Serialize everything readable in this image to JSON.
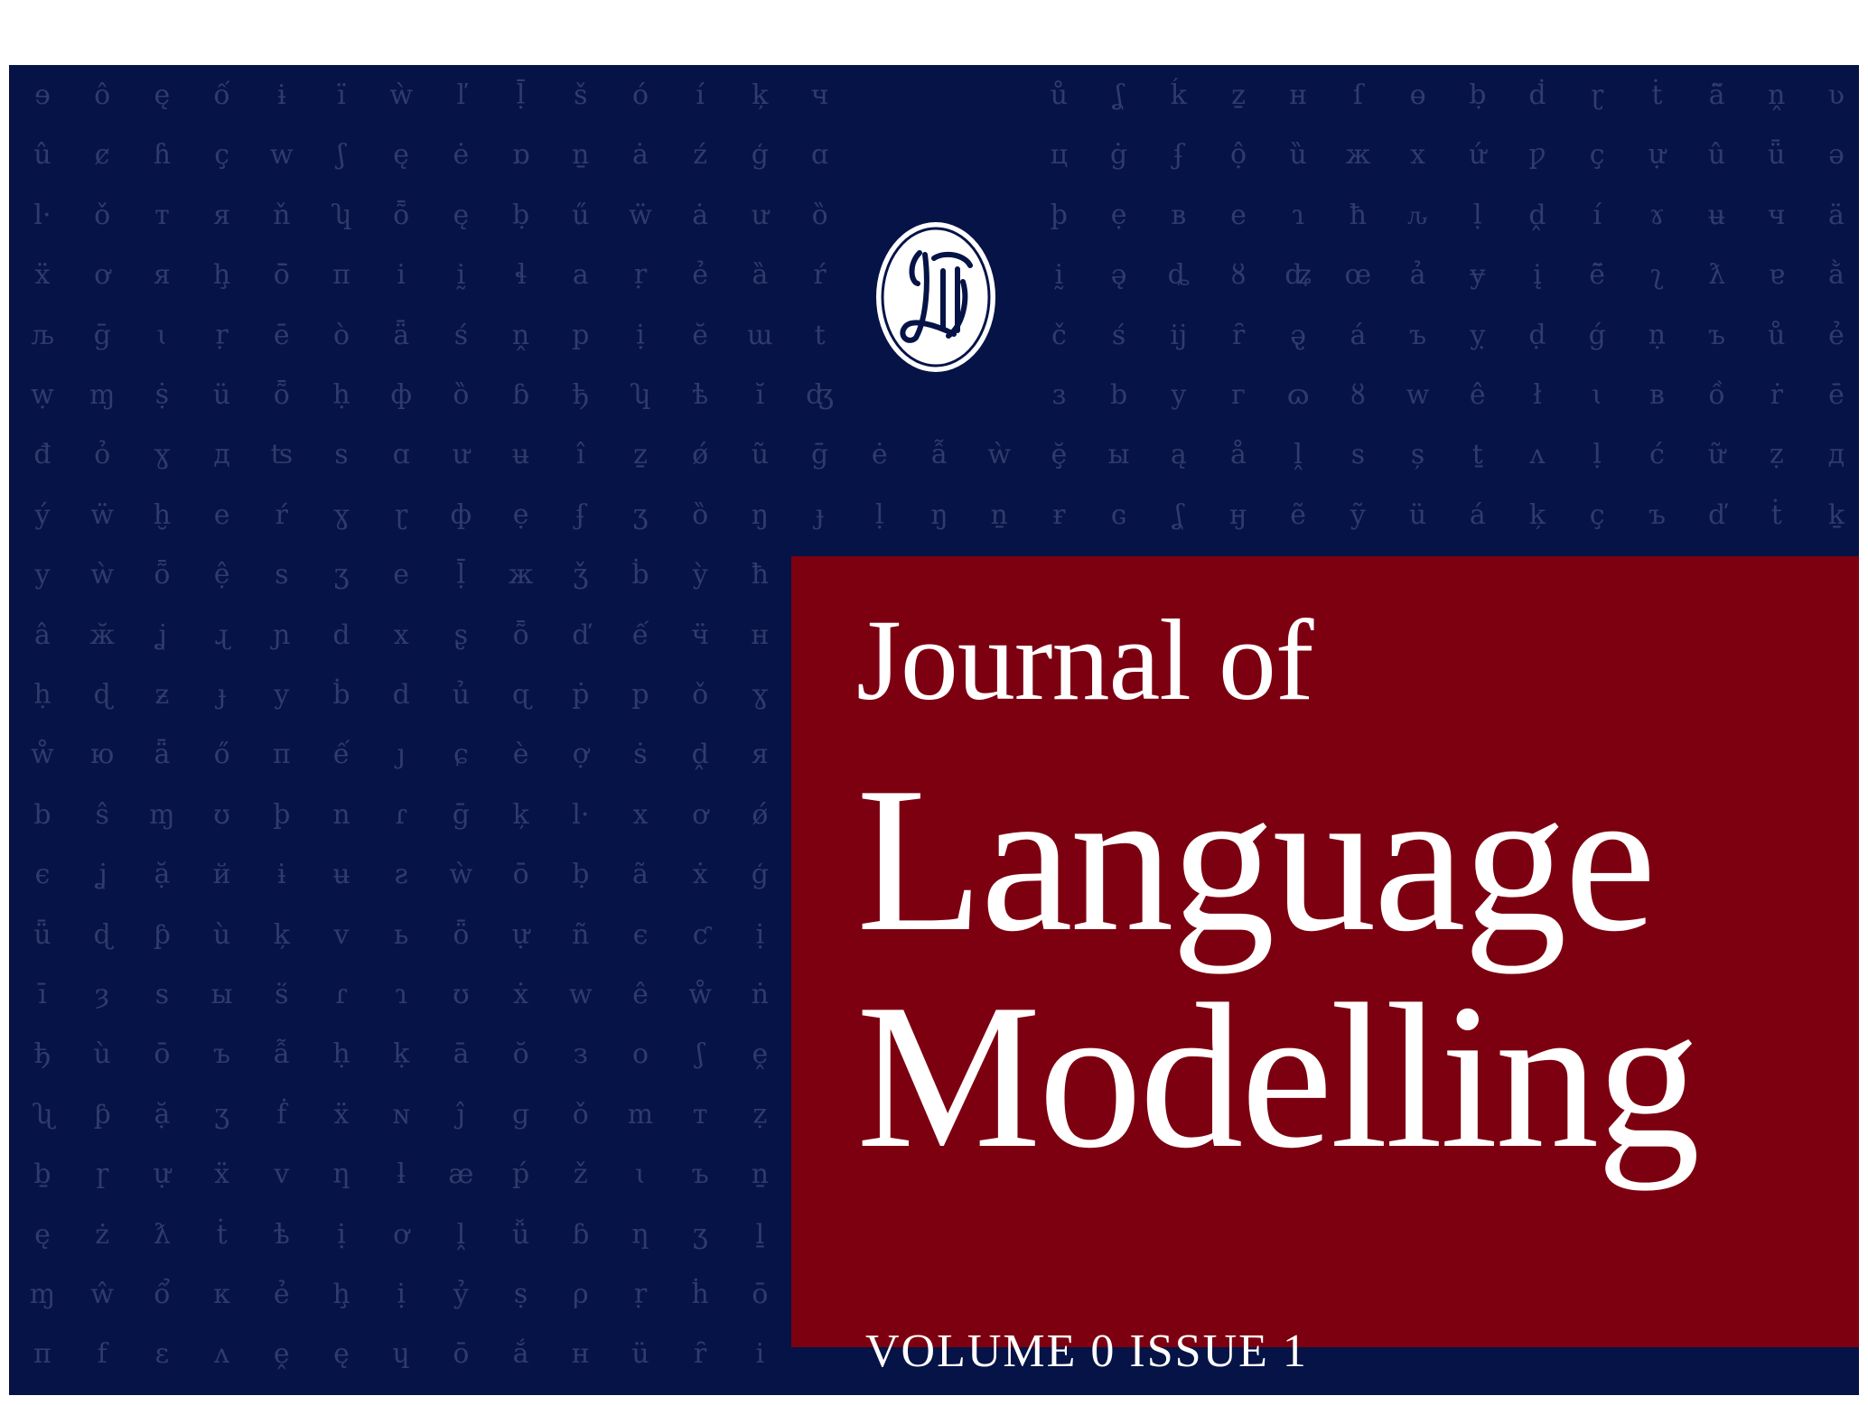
{
  "journal": {
    "title_line1": "Journal of",
    "title_line2": "Language",
    "title_line3": "Modelling",
    "volume_issue": "VOLUME 0  ISSUE 1",
    "logo_icon": "jlm-monogram-seal-icon"
  },
  "colors": {
    "background_navy": "#061346",
    "title_box_red": "#7d0011",
    "glyph_pattern": "#2f3b6c",
    "text": "#ffffff"
  },
  "glyph_rows": [
    [
      "ɘ",
      "ô",
      "ę",
      "ố",
      "ɨ",
      "ï",
      "ẁ",
      "ľ",
      "ḹ",
      "š",
      "ó",
      "í",
      "ķ",
      "ч",
      "",
      "",
      "",
      "ů",
      "ʆ",
      "ḱ",
      "ẕ",
      "н",
      "ſ",
      "ɵ",
      "ḅ",
      "ḋ",
      "ɽ",
      "ṫ",
      "ã̃",
      "ṋ",
      "ʋ"
    ],
    [
      "û",
      "ȼ",
      "ɦ",
      "ç",
      "w",
      "ʃ",
      "ę",
      "ė",
      "ɒ",
      "ṉ",
      "ȧ",
      "ź",
      "ģ",
      "ɑ",
      "",
      "",
      "",
      "ц",
      "ġ",
      "ʄ",
      "ộ",
      "ȕ",
      "ж",
      "х",
      "ứ",
      "ƿ",
      "ç",
      "ự",
      "û",
      "ǖ",
      "ə"
    ],
    [
      "l·",
      "ǒ",
      "т",
      "я",
      "ň",
      "ʮ",
      "ȭ",
      "ę",
      "ḅ",
      "ű",
      "ẅ",
      "ȧ",
      "ư",
      "ȍ",
      "",
      "",
      "",
      "þ",
      "ẹ",
      "в",
      "e",
      "ɿ",
      "ħ",
      "ԉ",
      "ḷ",
      "ḓ",
      "í",
      "ɤ",
      "ʉ",
      "ч",
      "ä"
    ],
    [
      "ẍ",
      "ơ",
      "я",
      "ḩ",
      "ō̄",
      "π",
      "i",
      "ḭ",
      "ɬ",
      "a",
      "ṛ",
      "ẻ",
      "ȁ",
      "ŕ",
      "",
      "",
      "",
      "ḭ",
      "ə̨",
      "ȡ",
      "ȣ",
      "ʥ",
      "œ",
      "ả",
      "ɏ",
      "į",
      "ẽ̄",
      "ʅ",
      "ƛ",
      "ɐ",
      "ằ"
    ],
    [
      "љ",
      "ḡ",
      "ɩ",
      "ṛ",
      "ē",
      "ò",
      "ǟ",
      "ś",
      "ṋ",
      "p",
      "ị",
      "ĕ",
      "ɯ",
      "t",
      "",
      "",
      "",
      "č",
      "ś",
      "ij",
      "ȓ",
      "ə̢",
      "á",
      "ъ",
      "ỵ",
      "ḍ",
      "ǵ",
      "ṇ",
      "ъ",
      "ů",
      "ẻ"
    ],
    [
      "ẉ",
      "ɱ",
      "ṩ",
      "ü",
      "ȭ",
      "ḥ",
      "ф",
      "ȍ",
      "ɓ",
      "ђ",
      "ʮ",
      "ѣ",
      "ĭ",
      "ʤ",
      "",
      "",
      "",
      "ɜ",
      "b",
      "y",
      "г",
      "ɷ",
      "ȣ",
      "w",
      "ê",
      "ł",
      "ɩ",
      "в",
      "ồ",
      "ṙ",
      "ē"
    ],
    [
      "đ",
      "ỏ",
      "ɣ",
      "д",
      "ʦ",
      "s",
      "ɑ",
      "ư",
      "ʉ",
      "î",
      "ẕ",
      "ǿ",
      "ũ",
      "ḡ",
      "ė",
      "ẫ",
      "ẁ",
      "ḝ",
      "ы",
      "ą",
      "å",
      "ḽ",
      "s",
      "ș",
      "ṯ",
      "ʌ",
      "ḷ",
      "ć",
      "ữ",
      "ẓ",
      "д"
    ],
    [
      "ý",
      "ẅ",
      "ḫ",
      "e",
      "ŕ",
      "ɣ",
      "ɽ",
      "ф",
      "ẹ",
      "ʄ",
      "ʒ",
      "ȍ",
      "ŋ",
      "ɟ",
      "ḷ",
      "ŋ",
      "ṉ",
      "ɍ",
      "ɢ",
      "ʆ",
      "ӈ",
      "ẽ",
      "ỹ",
      "ü",
      "á",
      "ķ",
      "ç",
      "ъ",
      "ď",
      "ṫ",
      "ḵ"
    ],
    [
      "y",
      "ẁ",
      "ȭ",
      "ệ",
      "s",
      "ʒ",
      "e",
      "ḹ",
      "ж",
      "ǯ",
      "ḃ",
      "ỳ",
      "ħ",
      "",
      "",
      "",
      "",
      "",
      "",
      "",
      "",
      "",
      "",
      "",
      "",
      "",
      "",
      "",
      "",
      "",
      ""
    ],
    [
      "â",
      "ӂ",
      "ʝ",
      "ɻ",
      "ɲ",
      "d",
      "x",
      "ʂ",
      "ȭ",
      "ď",
      "ế",
      "ӵ",
      "н",
      "",
      "",
      "",
      "",
      "",
      "",
      "",
      "",
      "",
      "",
      "",
      "",
      "",
      "",
      "",
      "",
      "",
      ""
    ],
    [
      "ḥ",
      "ɖ",
      "ƶ",
      "ɟ",
      "y",
      "ḃ",
      "d",
      "ủ",
      "ɋ",
      "ṗ",
      "p",
      "ǒ",
      "ɣ",
      "",
      "",
      "",
      "",
      "",
      "",
      "",
      "",
      "",
      "",
      "",
      "",
      "",
      "",
      "",
      "",
      "",
      ""
    ],
    [
      "ẘ",
      "ю",
      "ǟ",
      "ő",
      "π",
      "ế",
      "ȷ",
      "ɕ",
      "è",
      "ợ",
      "ṡ",
      "ḓ",
      "я",
      "",
      "",
      "",
      "",
      "",
      "",
      "",
      "",
      "",
      "",
      "",
      "",
      "",
      "",
      "",
      "",
      "",
      ""
    ],
    [
      "b",
      "ŝ",
      "ɱ",
      "ʊ",
      "þ",
      "n",
      "ɾ",
      "ḡ",
      "ķ",
      "l·",
      "x",
      "ơ",
      "ǿ",
      "",
      "",
      "",
      "",
      "",
      "",
      "",
      "",
      "",
      "",
      "",
      "",
      "",
      "",
      "",
      "",
      "",
      ""
    ],
    [
      "є",
      "ʝ",
      "ặ",
      "й",
      "ɨ",
      "ʉ",
      "ƨ",
      "ẁ",
      "ō",
      "ḅ",
      "ã",
      "ẋ",
      "ģ",
      "",
      "",
      "",
      "",
      "",
      "",
      "",
      "",
      "",
      "",
      "",
      "",
      "",
      "",
      "",
      "",
      "",
      ""
    ],
    [
      "ǖ",
      "ɖ",
      "ƥ",
      "ù",
      "ķ",
      "v",
      "ь",
      "ȫ",
      "ự",
      "ñ",
      "є",
      "ƈ",
      "ị",
      "",
      "",
      "",
      "",
      "",
      "",
      "",
      "",
      "",
      "",
      "",
      "",
      "",
      "",
      "",
      "",
      "",
      ""
    ],
    [
      "ī",
      "ȝ",
      "s",
      "ы",
      "ṥ",
      "ɾ",
      "ɿ",
      "ʊ",
      "ẋ",
      "w",
      "ê",
      "ẘ",
      "ṅ",
      "",
      "",
      "",
      "",
      "",
      "",
      "",
      "",
      "",
      "",
      "",
      "",
      "",
      "",
      "",
      "",
      "",
      ""
    ],
    [
      "ђ",
      "ù",
      "ō",
      "ъ",
      "ẫ",
      "ḥ",
      "ḳ",
      "ā",
      "ŏ",
      "з",
      "o",
      "ʃ",
      "ḙ",
      "",
      "",
      "",
      "",
      "",
      "",
      "",
      "",
      "",
      "",
      "",
      "",
      "",
      "",
      "",
      "",
      "",
      ""
    ],
    [
      "ʯ",
      "ƥ",
      "ặ",
      "ʒ",
      "ḟ",
      "ẍ",
      "ɴ",
      "ĵ",
      "ɡ",
      "ǒ",
      "m",
      "т",
      "ẓ",
      "",
      "",
      "",
      "",
      "",
      "",
      "",
      "",
      "",
      "",
      "",
      "",
      "",
      "",
      "",
      "",
      "",
      ""
    ],
    [
      "ḇ",
      "ɼ",
      "ự",
      "ẍ",
      "v",
      "ƞ",
      "ƚ",
      "æ",
      "ṕ",
      "ž",
      "ɩ",
      "ъ",
      "ṉ",
      "",
      "",
      "",
      "",
      "",
      "",
      "",
      "",
      "",
      "",
      "",
      "",
      "",
      "",
      "",
      "",
      "",
      ""
    ],
    [
      "ę",
      "ż",
      "ƛ",
      "ṫ",
      "ѣ",
      "ị",
      "ơ",
      "ḽ",
      "ǚ",
      "ɓ",
      "ƞ",
      "ʒ",
      "ḻ",
      "",
      "",
      "",
      "",
      "",
      "",
      "",
      "",
      "",
      "",
      "",
      "",
      "",
      "",
      "",
      "",
      "",
      ""
    ],
    [
      "ɱ",
      "ŵ",
      "ổ",
      "к",
      "ẻ",
      "ḩ",
      "ị",
      "ỷ",
      "ṣ",
      "ρ",
      "ṛ",
      "ḣ",
      "ō",
      "",
      "",
      "",
      "",
      "",
      "",
      "",
      "",
      "",
      "",
      "",
      "",
      "",
      "",
      "",
      "",
      "",
      ""
    ],
    [
      "π",
      "f",
      "ɛ",
      "ʌ",
      "ḙ",
      "ę",
      "ɥ",
      "ō",
      "ắ",
      "н",
      "ü",
      "ȓ",
      "i",
      "",
      "",
      "",
      "",
      "",
      "",
      "",
      "",
      "",
      "",
      "",
      "",
      "",
      "",
      "",
      "",
      "",
      ""
    ]
  ]
}
